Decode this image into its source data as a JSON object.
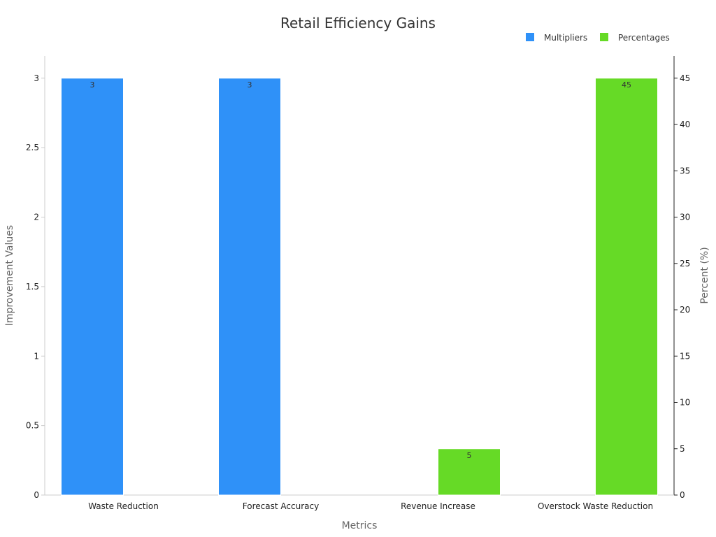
{
  "chart_data": {
    "type": "bar",
    "title": "Retail Efficiency Gains",
    "xlabel": "Metrics",
    "ylabel": "Improvement Values",
    "y2label": "Percent (%)",
    "categories": [
      "Waste Reduction",
      "Forecast Accuracy",
      "Revenue Increase",
      "Overstock Waste Reduction"
    ],
    "ylim": [
      0,
      3.16
    ],
    "y2lim": [
      0,
      47.4
    ],
    "yticks": [
      "0",
      "0.5",
      "1",
      "1.5",
      "2",
      "2.5",
      "3"
    ],
    "y2ticks": [
      "0",
      "5",
      "10",
      "15",
      "20",
      "25",
      "30",
      "35",
      "40",
      "45"
    ],
    "legend_position": "top-right",
    "grid": false,
    "series": [
      {
        "name": "Multipliers",
        "axis": "left",
        "color": "#2f91f8",
        "values": [
          3,
          3,
          null,
          null
        ],
        "labels": [
          "3",
          "3",
          "",
          ""
        ]
      },
      {
        "name": "Percentages",
        "axis": "right",
        "color": "#66da26",
        "values": [
          null,
          null,
          5,
          45
        ],
        "labels": [
          "",
          "",
          "5",
          "45"
        ]
      }
    ]
  }
}
